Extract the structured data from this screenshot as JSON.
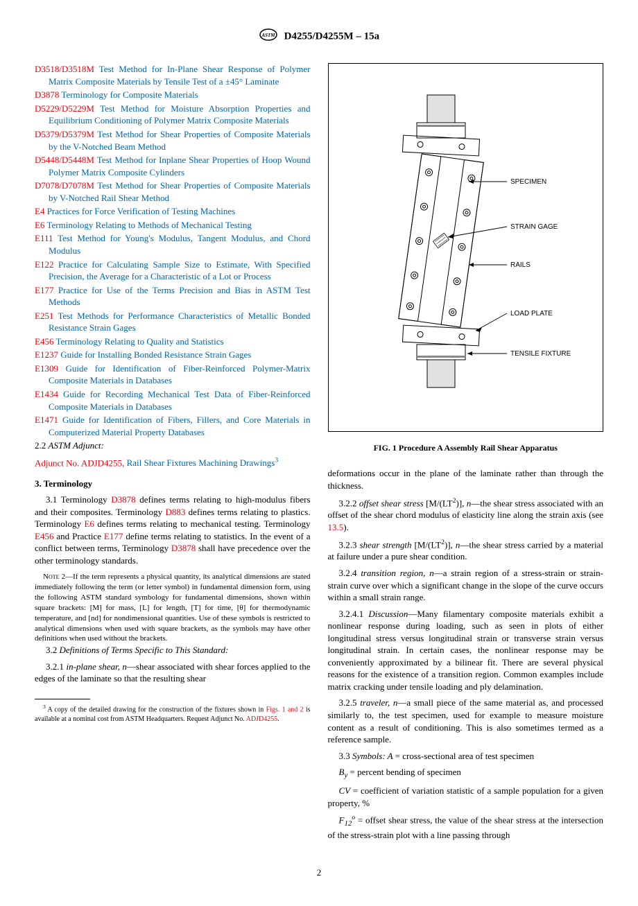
{
  "header": {
    "designation": "D4255/D4255M – 15a"
  },
  "refs": [
    {
      "code": "D3518/D3518M",
      "title": "Test Method for In-Plane Shear Response of Polymer Matrix Composite Materials by Tensile Test of a ±45° Laminate"
    },
    {
      "code": "D3878",
      "title": "Terminology for Composite Materials"
    },
    {
      "code": "D5229/D5229M",
      "title": "Test Method for Moisture Absorption Properties and Equilibrium Conditioning of Polymer Matrix Composite Materials"
    },
    {
      "code": "D5379/D5379M",
      "title": "Test Method for Shear Properties of Composite Materials by the V-Notched Beam Method"
    },
    {
      "code": "D5448/D5448M",
      "title": "Test Method for Inplane Shear Properties of Hoop Wound Polymer Matrix Composite Cylinders"
    },
    {
      "code": "D7078/D7078M",
      "title": "Test Method for Shear Properties of Composite Materials by V-Notched Rail Shear Method"
    },
    {
      "code": "E4",
      "title": "Practices for Force Verification of Testing Machines"
    },
    {
      "code": "E6",
      "title": "Terminology Relating to Methods of Mechanical Testing"
    },
    {
      "code": "E111",
      "title": "Test Method for Young's Modulus, Tangent Modulus, and Chord Modulus"
    },
    {
      "code": "E122",
      "title": "Practice for Calculating Sample Size to Estimate, With Specified Precision, the Average for a Characteristic of a Lot or Process"
    },
    {
      "code": "E177",
      "title": "Practice for Use of the Terms Precision and Bias in ASTM Test Methods"
    },
    {
      "code": "E251",
      "title": "Test Methods for Performance Characteristics of Metallic Bonded Resistance Strain Gages"
    },
    {
      "code": "E456",
      "title": "Terminology Relating to Quality and Statistics"
    },
    {
      "code": "E1237",
      "title": "Guide for Installing Bonded Resistance Strain Gages"
    },
    {
      "code": "E1309",
      "title": "Guide for Identification of Fiber-Reinforced Polymer-Matrix Composite Materials in Databases"
    },
    {
      "code": "E1434",
      "title": "Guide for Recording Mechanical Test Data of Fiber-Reinforced Composite Materials in Databases"
    },
    {
      "code": "E1471",
      "title": "Guide for Identification of Fibers, Fillers, and Core Materials in Computerized Material Property Databases"
    }
  ],
  "adjunct": {
    "label": "2.2 ",
    "italic": "ASTM Adjunct:",
    "code": "Adjunct No.",
    "num": "ADJD4255,",
    "title": "Rail Shear Fixtures Machining Drawings",
    "sup": "3"
  },
  "section3": {
    "heading": "3. Terminology",
    "p31_pre": "3.1 Terminology ",
    "p31_link1": "D3878",
    "p31_mid1": " defines terms relating to high-modulus fibers and their composites. Terminology ",
    "p31_link2": "D883",
    "p31_mid2": " defines terms relating to plastics. Terminology ",
    "p31_link3": "E6",
    "p31_mid3": " defines terms relating to mechanical testing. Terminology ",
    "p31_link4": "E456",
    "p31_mid4": " and Practice ",
    "p31_link5": "E177",
    "p31_mid5": " define terms relating to statistics. In the event of a conflict between terms, Terminology ",
    "p31_link6": "D3878",
    "p31_end": " shall have precedence over the other terminology standards.",
    "note2": "NOTE 2—If the term represents a physical quantity, its analytical dimensions are stated immediately following the term (or letter symbol) in fundamental dimension form, using the following ASTM standard symbology for fundamental dimensions, shown within square brackets: [M] for mass, [L] for length, [T] for time, [θ] for thermodynamic temperature, and [nd] for nondimensional quantities. Use of these symbols is restricted to analytical dimensions when used with square brackets, as the symbols may have other definitions when used without the brackets.",
    "p32_pre": "3.2 ",
    "p32_italic": "Definitions of Terms Specific to This Standard:",
    "p321_pre": "3.2.1 ",
    "p321_term": "in-plane shear, n",
    "p321_body": "—shear associated with shear forces applied to the edges of the laminate so that the resulting shear"
  },
  "footnote3": {
    "pre": "3 A copy of the detailed drawing for the construction of the fixtures shown in ",
    "link1": "Figs. 1 and 2",
    "mid": " is available at a nominal cost from ASTM Headquarters. Request Adjunct No. ",
    "link2": "ADJD4255",
    "end": "."
  },
  "figure": {
    "caption": "FIG. 1 Procedure A Assembly Rail Shear Apparatus",
    "labels": {
      "specimen": "SPECIMEN",
      "strain_gage": "STRAIN GAGE",
      "rails": "RAILS",
      "load_plate": "LOAD PLATE",
      "tensile": "TENSILE FIXTURE"
    }
  },
  "col2": {
    "p_deform": "deformations occur in the plane of the laminate rather than through the thickness.",
    "p322_pre": "3.2.2 ",
    "p322_term": "offset shear stress ",
    "p322_dim": "[M/(LT",
    "p322_dim2": ")]",
    "p322_it": ", n",
    "p322_body": "—the shear stress associated with an offset of the shear chord modulus of elasticity line along the strain axis (see ",
    "p322_link": "13.5",
    "p322_end": ").",
    "p323_pre": "3.2.3 ",
    "p323_term": "shear strength ",
    "p323_dim": "[M/(LT",
    "p323_dim2": ")]",
    "p323_it": ", n",
    "p323_body": "—the shear stress carried by a material at failure under a pure shear condition.",
    "p324_pre": "3.2.4 ",
    "p324_term": "transition region, n",
    "p324_body": "—a strain region of a stress-strain or strain-strain curve over which a significant change in the slope of the curve occurs within a small strain range.",
    "p3241_pre": "3.2.4.1 ",
    "p3241_term": "Discussion",
    "p3241_body": "—Many filamentary composite materials exhibit a nonlinear response during loading, such as seen in plots of either longitudinal stress versus longitudinal strain or transverse strain versus longitudinal strain. In certain cases, the nonlinear response may be conveniently approximated by a bilinear fit. There are several physical reasons for the existence of a transition region. Common examples include matrix cracking under tensile loading and ply delamination.",
    "p325_pre": "3.2.5 ",
    "p325_term": "traveler, n",
    "p325_body": "—a small piece of the same material as, and processed similarly to, the test specimen, used for example to measure moisture content as a result of conditioning. This is also sometimes termed as a reference sample.",
    "p33_pre": "3.3 ",
    "p33_term": "Symbols: A ",
    "p33_body": "= cross-sectional area of test specimen",
    "by_sym": "B",
    "by_sub": "y",
    "by_body": " = percent bending of specimen",
    "cv_sym": "CV ",
    "cv_body": "= coefficient of variation statistic of a sample population for a given property, %",
    "f12_sym": "F",
    "f12_sub": "12",
    "f12_sup": "o",
    "f12_body": " = offset shear stress, the value of the shear stress at the intersection of the stress-strain plot with a line passing through"
  },
  "page_num": "2"
}
